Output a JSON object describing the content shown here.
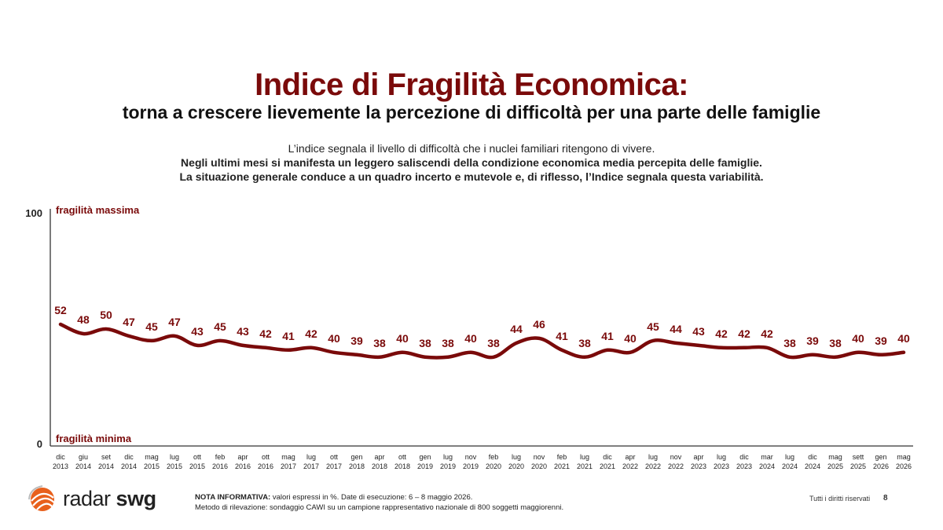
{
  "header": {
    "title": "Indice di Fragilità Economica:",
    "subtitle": "torna a crescere lievemente la percezione di difficoltà per una parte delle famiglie",
    "desc_line1": "L’indice segnala il livello di difficoltà che i nuclei familiari ritengono di vivere.",
    "desc_line2": "Negli ultimi mesi si manifesta un leggero saliscendi della condizione economica media percepita delle famiglie.",
    "desc_line3": "La situazione generale conduce a un quadro incerto e mutevole e, di riflesso, l’Indice segnala questa variabilità."
  },
  "chart_data": {
    "type": "line",
    "ylim": [
      0,
      100
    ],
    "y_ticks": [
      "100",
      "0"
    ],
    "top_label": "fragilità massima",
    "bottom_label": "fragilità minima",
    "categories": [
      [
        "dic",
        "2013"
      ],
      [
        "giu",
        "2014"
      ],
      [
        "set",
        "2014"
      ],
      [
        "dic",
        "2014"
      ],
      [
        "mag",
        "2015"
      ],
      [
        "lug",
        "2015"
      ],
      [
        "ott",
        "2015"
      ],
      [
        "feb",
        "2016"
      ],
      [
        "apr",
        "2016"
      ],
      [
        "ott",
        "2016"
      ],
      [
        "mag",
        "2017"
      ],
      [
        "lug",
        "2017"
      ],
      [
        "ott",
        "2017"
      ],
      [
        "gen",
        "2018"
      ],
      [
        "apr",
        "2018"
      ],
      [
        "ott",
        "2018"
      ],
      [
        "gen",
        "2019"
      ],
      [
        "lug",
        "2019"
      ],
      [
        "nov",
        "2019"
      ],
      [
        "feb",
        "2020"
      ],
      [
        "lug",
        "2020"
      ],
      [
        "nov",
        "2020"
      ],
      [
        "feb",
        "2021"
      ],
      [
        "lug",
        "2021"
      ],
      [
        "dic",
        "2021"
      ],
      [
        "apr",
        "2022"
      ],
      [
        "lug",
        "2022"
      ],
      [
        "nov",
        "2022"
      ],
      [
        "apr",
        "2023"
      ],
      [
        "lug",
        "2023"
      ],
      [
        "dic",
        "2023"
      ],
      [
        "mar",
        "2024"
      ],
      [
        "lug",
        "2024"
      ],
      [
        "dic",
        "2024"
      ],
      [
        "mag",
        "2025"
      ],
      [
        "sett",
        "2025"
      ],
      [
        "gen",
        "2026"
      ],
      [
        "mag",
        "2026"
      ]
    ],
    "values": [
      52,
      48,
      50,
      47,
      45,
      47,
      43,
      45,
      43,
      42,
      41,
      42,
      40,
      39,
      38,
      40,
      38,
      38,
      40,
      38,
      44,
      46,
      41,
      38,
      41,
      40,
      45,
      44,
      43,
      42,
      42,
      42,
      38,
      39,
      38,
      40,
      39,
      40
    ],
    "series_color": "#7a0a0a",
    "grid": false
  },
  "footer": {
    "note_label": "NOTA INFORMATIVA:",
    "note_text": " valori espressi in %. Date di esecuzione: 6 – 8 maggio 2026.",
    "method_text": "Metodo di rilevazione: sondaggio CAWI su un campione rappresentativo nazionale di 800 soggetti maggiorenni.",
    "rights": "Tutti i diritti riservati",
    "page_number": "8",
    "logo_word1": "radar",
    "logo_word2": "swg",
    "logo_color": "#e8601c"
  }
}
